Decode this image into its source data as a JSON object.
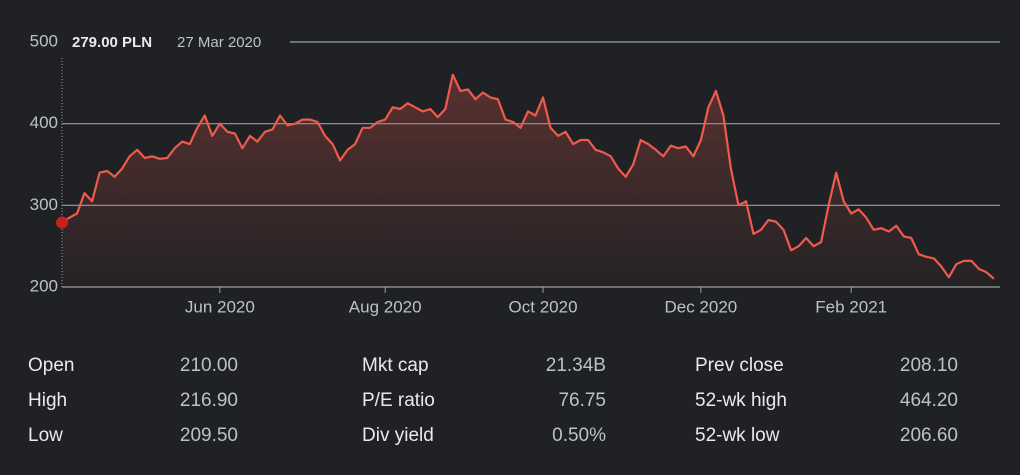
{
  "chart_data": {
    "type": "line",
    "color": "#ee5b4c",
    "values": [
      279,
      285,
      290,
      315,
      305,
      340,
      342,
      335,
      345,
      360,
      368,
      358,
      360,
      357,
      358,
      370,
      378,
      375,
      395,
      410,
      385,
      400,
      390,
      388,
      370,
      385,
      378,
      390,
      393,
      410,
      398,
      400,
      405,
      405,
      402,
      385,
      375,
      355,
      368,
      375,
      395,
      395,
      402,
      405,
      420,
      418,
      425,
      420,
      415,
      418,
      408,
      418,
      460,
      440,
      442,
      430,
      438,
      432,
      430,
      405,
      402,
      395,
      415,
      410,
      432,
      395,
      385,
      390,
      375,
      380,
      380,
      368,
      365,
      360,
      345,
      335,
      350,
      380,
      375,
      368,
      360,
      373,
      370,
      372,
      360,
      380,
      420,
      440,
      410,
      345,
      300,
      305,
      265,
      270,
      282,
      280,
      270,
      245,
      250,
      260,
      250,
      255,
      300,
      340,
      305,
      290,
      295,
      285,
      270,
      272,
      268,
      275,
      262,
      260,
      240,
      237,
      235,
      225,
      212,
      228,
      232,
      232,
      222,
      218,
      210
    ],
    "xlim": [
      0,
      124
    ],
    "xticks": [
      {
        "value": 21,
        "label": "Jun 2020"
      },
      {
        "value": 43,
        "label": "Aug 2020"
      },
      {
        "value": 64,
        "label": "Oct 2020"
      },
      {
        "value": 85,
        "label": "Dec 2020"
      },
      {
        "value": 105,
        "label": "Feb 2021"
      }
    ],
    "ylim": [
      200,
      500
    ],
    "yticks": [
      200,
      300,
      400,
      500
    ],
    "grid": true,
    "tooltip": {
      "price": "279.00 PLN",
      "date": "27 Mar 2020"
    }
  },
  "stats": [
    [
      {
        "label": "Open",
        "value": "210.00"
      },
      {
        "label": "High",
        "value": "216.90"
      },
      {
        "label": "Low",
        "value": "209.50"
      }
    ],
    [
      {
        "label": "Mkt cap",
        "value": "21.34B"
      },
      {
        "label": "P/E ratio",
        "value": "76.75"
      },
      {
        "label": "Div yield",
        "value": "0.50%"
      }
    ],
    [
      {
        "label": "Prev close",
        "value": "208.10"
      },
      {
        "label": "52-wk high",
        "value": "464.20"
      },
      {
        "label": "52-wk low",
        "value": "206.60"
      }
    ]
  ]
}
